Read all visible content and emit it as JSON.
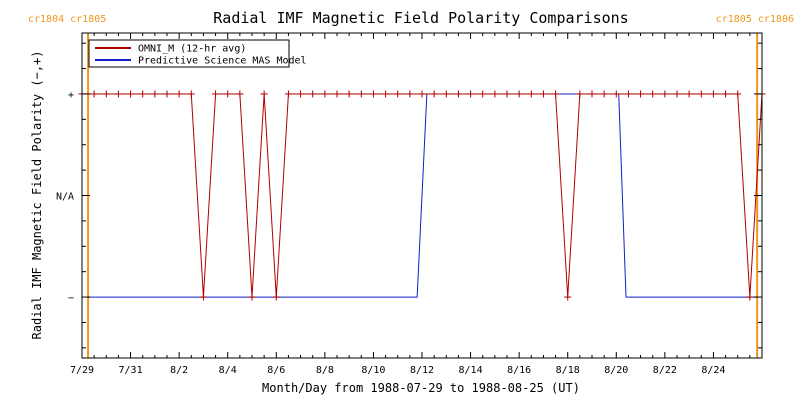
{
  "colors": {
    "omni": "#b00000",
    "model": "#1020c8",
    "cr": "#f0961e",
    "axis": "#000000"
  },
  "chart_data": {
    "type": "line",
    "title": "Radial IMF Magnetic Field Polarity Comparisons",
    "xlabel": "Month/Day from 1988-07-29 to 1988-08-25 (UT)",
    "ylabel": "Radial IMF Magnetic Field Polarity (−,+)",
    "x_unit": "days",
    "xlim": [
      0,
      28
    ],
    "ylim": [
      -1.6,
      1.6
    ],
    "x_ticks": [
      {
        "label": "7/29",
        "x": 0
      },
      {
        "label": "7/31",
        "x": 2
      },
      {
        "label": "8/2",
        "x": 4
      },
      {
        "label": "8/4",
        "x": 6
      },
      {
        "label": "8/6",
        "x": 8
      },
      {
        "label": "8/8",
        "x": 10
      },
      {
        "label": "8/10",
        "x": 12
      },
      {
        "label": "8/12",
        "x": 14
      },
      {
        "label": "8/14",
        "x": 16
      },
      {
        "label": "8/16",
        "x": 18
      },
      {
        "label": "8/18",
        "x": 20
      },
      {
        "label": "8/20",
        "x": 22
      },
      {
        "label": "8/22",
        "x": 24
      },
      {
        "label": "8/24",
        "x": 26
      }
    ],
    "y_ticks": [
      {
        "label": "+",
        "y": 1
      },
      {
        "label": "N/A",
        "y": 0
      },
      {
        "label": "−",
        "y": -1
      }
    ],
    "carrington_markers": [
      {
        "x": 0.25,
        "labels": [
          "cr1804",
          "cr1805"
        ],
        "align": "left"
      },
      {
        "x": 27.8,
        "labels": [
          "cr1805",
          "cr1806"
        ],
        "align": "right"
      }
    ],
    "legend": {
      "position": "top-left"
    },
    "series": [
      {
        "name": "OMNI_M (12-hr avg)",
        "color_key": "omni",
        "markers": true,
        "points": [
          [
            0,
            1
          ],
          [
            0.5,
            1
          ],
          [
            1,
            1
          ],
          [
            1.5,
            1
          ],
          [
            2,
            1
          ],
          [
            2.5,
            1
          ],
          [
            3,
            1
          ],
          [
            3.5,
            1
          ],
          [
            4,
            1
          ],
          [
            4.5,
            1
          ],
          [
            5,
            -1
          ],
          [
            5.5,
            1
          ],
          [
            6,
            1
          ],
          [
            6.5,
            1
          ],
          [
            7,
            -1
          ],
          [
            7.5,
            1
          ],
          [
            8,
            -1
          ],
          [
            8.5,
            1
          ],
          [
            9,
            1
          ],
          [
            9.5,
            1
          ],
          [
            10,
            1
          ],
          [
            10.5,
            1
          ],
          [
            11,
            1
          ],
          [
            11.5,
            1
          ],
          [
            12,
            1
          ],
          [
            12.5,
            1
          ],
          [
            13,
            1
          ],
          [
            13.5,
            1
          ],
          [
            14,
            1
          ],
          [
            14.5,
            1
          ],
          [
            15,
            1
          ],
          [
            15.5,
            1
          ],
          [
            16,
            1
          ],
          [
            16.5,
            1
          ],
          [
            17,
            1
          ],
          [
            17.5,
            1
          ],
          [
            18,
            1
          ],
          [
            18.5,
            1
          ],
          [
            19,
            1
          ],
          [
            19.5,
            1
          ],
          [
            20,
            -1
          ],
          [
            20.5,
            1
          ],
          [
            21,
            1
          ],
          [
            21.5,
            1
          ],
          [
            22,
            1
          ],
          [
            22.5,
            1
          ],
          [
            23,
            1
          ],
          [
            23.5,
            1
          ],
          [
            24,
            1
          ],
          [
            24.5,
            1
          ],
          [
            25,
            1
          ],
          [
            25.5,
            1
          ],
          [
            26,
            1
          ],
          [
            26.5,
            1
          ],
          [
            27,
            1
          ],
          [
            27.5,
            -1
          ],
          [
            28,
            1
          ]
        ]
      },
      {
        "name": "Predictive Science MAS Model",
        "color_key": "model",
        "markers": false,
        "points": [
          [
            0.25,
            -1
          ],
          [
            13.8,
            -1
          ],
          [
            14.2,
            1
          ],
          [
            22.1,
            1
          ],
          [
            22.4,
            -1
          ],
          [
            27.8,
            -1
          ]
        ]
      }
    ]
  }
}
